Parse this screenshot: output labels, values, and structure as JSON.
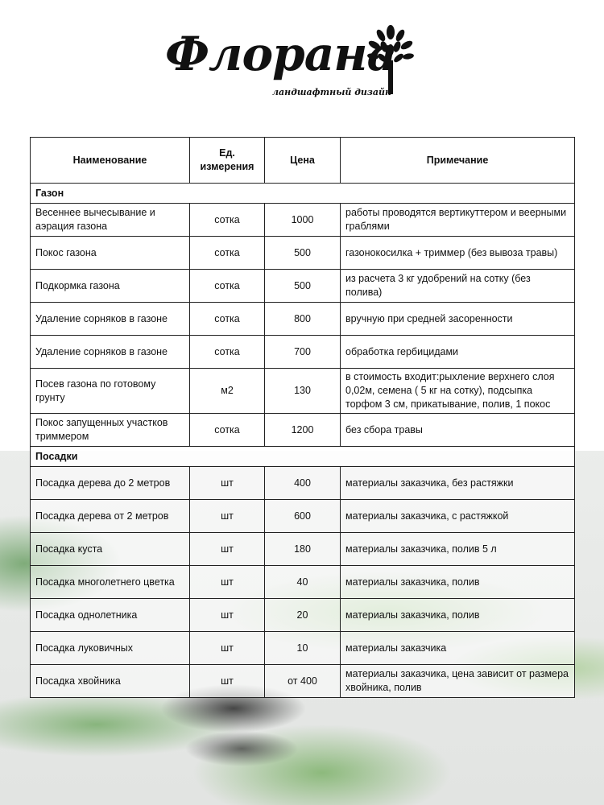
{
  "logo": {
    "name": "Флорана",
    "tagline": "ландшафтный дизайн"
  },
  "table": {
    "headers": [
      "Наименование",
      "Ед. измерения",
      "Цена",
      "Примечание"
    ],
    "sections": [
      {
        "title": "Газон",
        "rows": [
          [
            "Весеннее вычесывание и аэрация газона",
            "сотка",
            "1000",
            "работы проводятся вертикуттером и веерными граблями"
          ],
          [
            "Покос газона",
            "сотка",
            "500",
            "газонокосилка + триммер (без вывоза травы)"
          ],
          [
            "Подкормка газона",
            "сотка",
            "500",
            "из расчета 3 кг удобрений на сотку (без полива)"
          ],
          [
            "Удаление сорняков в газоне",
            "сотка",
            "800",
            "вручную при средней засоренности"
          ],
          [
            "Удаление сорняков в газоне",
            "сотка",
            "700",
            "обработка гербицидами"
          ],
          [
            "Посев газона по готовому грунту",
            "м2",
            "130",
            "в стоимость входит:рыхление верхнего слоя 0,02м, семена ( 5 кг на сотку), подсыпка торфом 3 см, прикатывание, полив, 1 покос"
          ],
          [
            "Покос запущенных участков триммером",
            "сотка",
            "1200",
            "без сбора травы"
          ]
        ]
      },
      {
        "title": "Посадки",
        "rows": [
          [
            "Посадка дерева до 2 метров",
            "шт",
            "400",
            "материалы заказчика, без растяжки"
          ],
          [
            "Посадка дерева от 2 метров",
            "шт",
            "600",
            "материалы заказчика, с растяжкой"
          ],
          [
            "Посадка куста",
            "шт",
            "180",
            "материалы заказчика, полив 5 л"
          ],
          [
            "Посадка многолетнего цветка",
            "шт",
            "40",
            "материалы заказчика, полив"
          ],
          [
            "Посадка однолетника",
            "шт",
            "20",
            "материалы заказчика, полив"
          ],
          [
            "Посадка луковичных",
            "шт",
            "10",
            "материалы заказчика"
          ],
          [
            "Посадка хвойника",
            "шт",
            "от 400",
            "материалы заказчика, цена зависит от размера хвойника, полив"
          ]
        ]
      }
    ]
  }
}
